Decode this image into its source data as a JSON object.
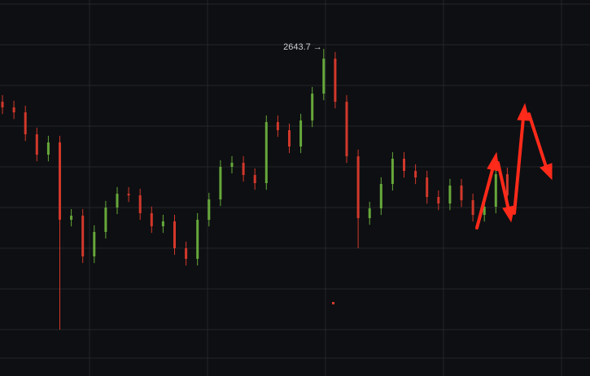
{
  "chart_data": {
    "type": "candlestick",
    "annotation": {
      "value": 2643.7,
      "label": "2643.7 →"
    },
    "up_color": "#66a83a",
    "down_color": "#d2382b",
    "ylim": [
      2200,
      2710
    ],
    "open": [
      2572.0,
      2564.3,
      2557.6,
      2527.8,
      2500.2,
      2516.8,
      2411.9,
      2417.4,
      2362.2,
      2395.4,
      2428.5,
      2447.2,
      2445.0,
      2420.8,
      2403.1,
      2409.7,
      2373.3,
      2358.9,
      2411.9,
      2439.5,
      2483.7,
      2489.2,
      2472.6,
      2461.6,
      2544.4,
      2533.4,
      2511.3,
      2546.6,
      2583.0,
      2630.5,
      2572.0,
      2498.0,
      2414.1,
      2427.4,
      2460.5,
      2494.7,
      2478.2,
      2469.3,
      2442.8,
      2434.0,
      2458.3,
      2438.4,
      2418.5,
      2429.6,
      2473.7
    ],
    "high": [
      2581.0,
      2573.3,
      2566.6,
      2536.8,
      2525.8,
      2525.8,
      2426.4,
      2426.4,
      2404.4,
      2437.5,
      2456.2,
      2456.2,
      2454.0,
      2429.8,
      2418.7,
      2418.7,
      2382.3,
      2420.9,
      2448.5,
      2492.7,
      2498.2,
      2498.2,
      2481.6,
      2553.4,
      2553.4,
      2542.4,
      2555.6,
      2592.0,
      2643.7,
      2639.5,
      2581.0,
      2507.0,
      2436.4,
      2469.5,
      2503.7,
      2503.7,
      2487.2,
      2478.3,
      2451.8,
      2467.3,
      2467.3,
      2447.4,
      2438.6,
      2482.7,
      2482.7
    ],
    "low": [
      2555.3,
      2548.6,
      2518.8,
      2491.2,
      2491.2,
      2262.9,
      2402.9,
      2353.2,
      2353.2,
      2386.4,
      2419.5,
      2436.0,
      2411.8,
      2394.1,
      2394.1,
      2364.3,
      2349.9,
      2349.9,
      2402.9,
      2430.5,
      2474.7,
      2463.6,
      2452.6,
      2452.6,
      2524.4,
      2502.3,
      2502.3,
      2537.6,
      2574.0,
      2563.0,
      2489.0,
      2373.3,
      2405.1,
      2418.4,
      2451.5,
      2469.2,
      2460.3,
      2433.8,
      2425.0,
      2425.0,
      2429.4,
      2409.5,
      2409.5,
      2420.6,
      2436.0
    ],
    "close": [
      2564.3,
      2557.6,
      2527.8,
      2500.2,
      2516.8,
      2411.9,
      2417.4,
      2362.2,
      2395.4,
      2428.5,
      2447.2,
      2445.0,
      2420.8,
      2403.1,
      2409.7,
      2373.3,
      2358.9,
      2411.9,
      2439.5,
      2483.7,
      2489.2,
      2472.6,
      2461.6,
      2544.4,
      2533.4,
      2511.3,
      2546.6,
      2583.0,
      2630.5,
      2572.0,
      2498.0,
      2414.1,
      2427.4,
      2460.5,
      2494.7,
      2478.2,
      2469.3,
      2442.8,
      2434.0,
      2458.3,
      2438.4,
      2418.5,
      2429.6,
      2473.7,
      2445.0
    ]
  }
}
